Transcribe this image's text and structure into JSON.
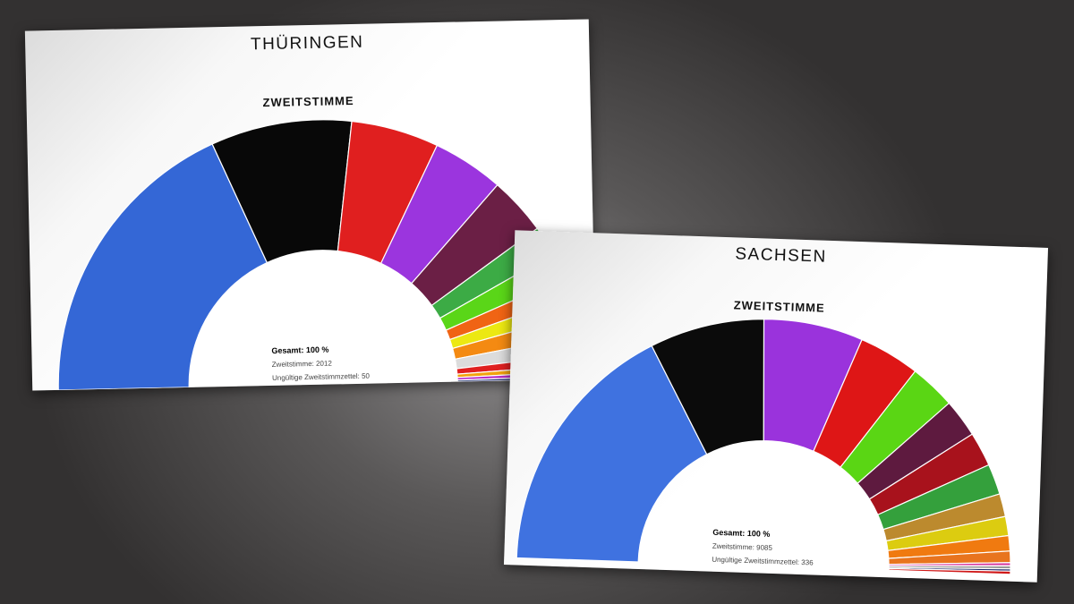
{
  "chart_data": [
    {
      "type": "pie",
      "variant": "semicircle-donut",
      "title": "THÜRINGEN",
      "subtitle": "ZWEITSTIMME",
      "total_label": "Gesamt: 100 %",
      "votes_label": "Zweitstimme: 2012",
      "invalid_label": "Ungültige Zweitstimmzettel: 50",
      "values": [
        36.9,
        17.2,
        10.7,
        8.7,
        7.1,
        3.6,
        3.2,
        2.4,
        2.2,
        2.6,
        2.3,
        1.3,
        0.8,
        0.6,
        0.4
      ],
      "colors": [
        "#3467d6",
        "#080808",
        "#e01f1f",
        "#9b35de",
        "#6b1f45",
        "#3cab45",
        "#5ad618",
        "#f06414",
        "#ece812",
        "#f48a12",
        "#dcdcdc",
        "#e02020",
        "#f2a20e",
        "#b82ec8",
        "#1e2a6e"
      ]
    },
    {
      "type": "pie",
      "variant": "semicircle-donut",
      "title": "SACHSEN",
      "subtitle": "ZWEITSTIMME",
      "total_label": "Gesamt: 100 %",
      "votes_label": "Zweitstimme: 9085",
      "invalid_label": "Ungültige Zweitstimmzettel: 336",
      "values": [
        34,
        15,
        13,
        8,
        6,
        5,
        4.5,
        4,
        3,
        2.5,
        2,
        1.5,
        0.4,
        0.4,
        0.3,
        0.4
      ],
      "colors": [
        "#3f72e0",
        "#0b0b0b",
        "#9a33dc",
        "#de1616",
        "#5ad614",
        "#5e1a3f",
        "#a8121c",
        "#34a03c",
        "#bc8a2e",
        "#dccc10",
        "#f07a10",
        "#e8741e",
        "#d63aa0",
        "#9a9a9a",
        "#1e2a6e",
        "#d01818"
      ]
    }
  ]
}
